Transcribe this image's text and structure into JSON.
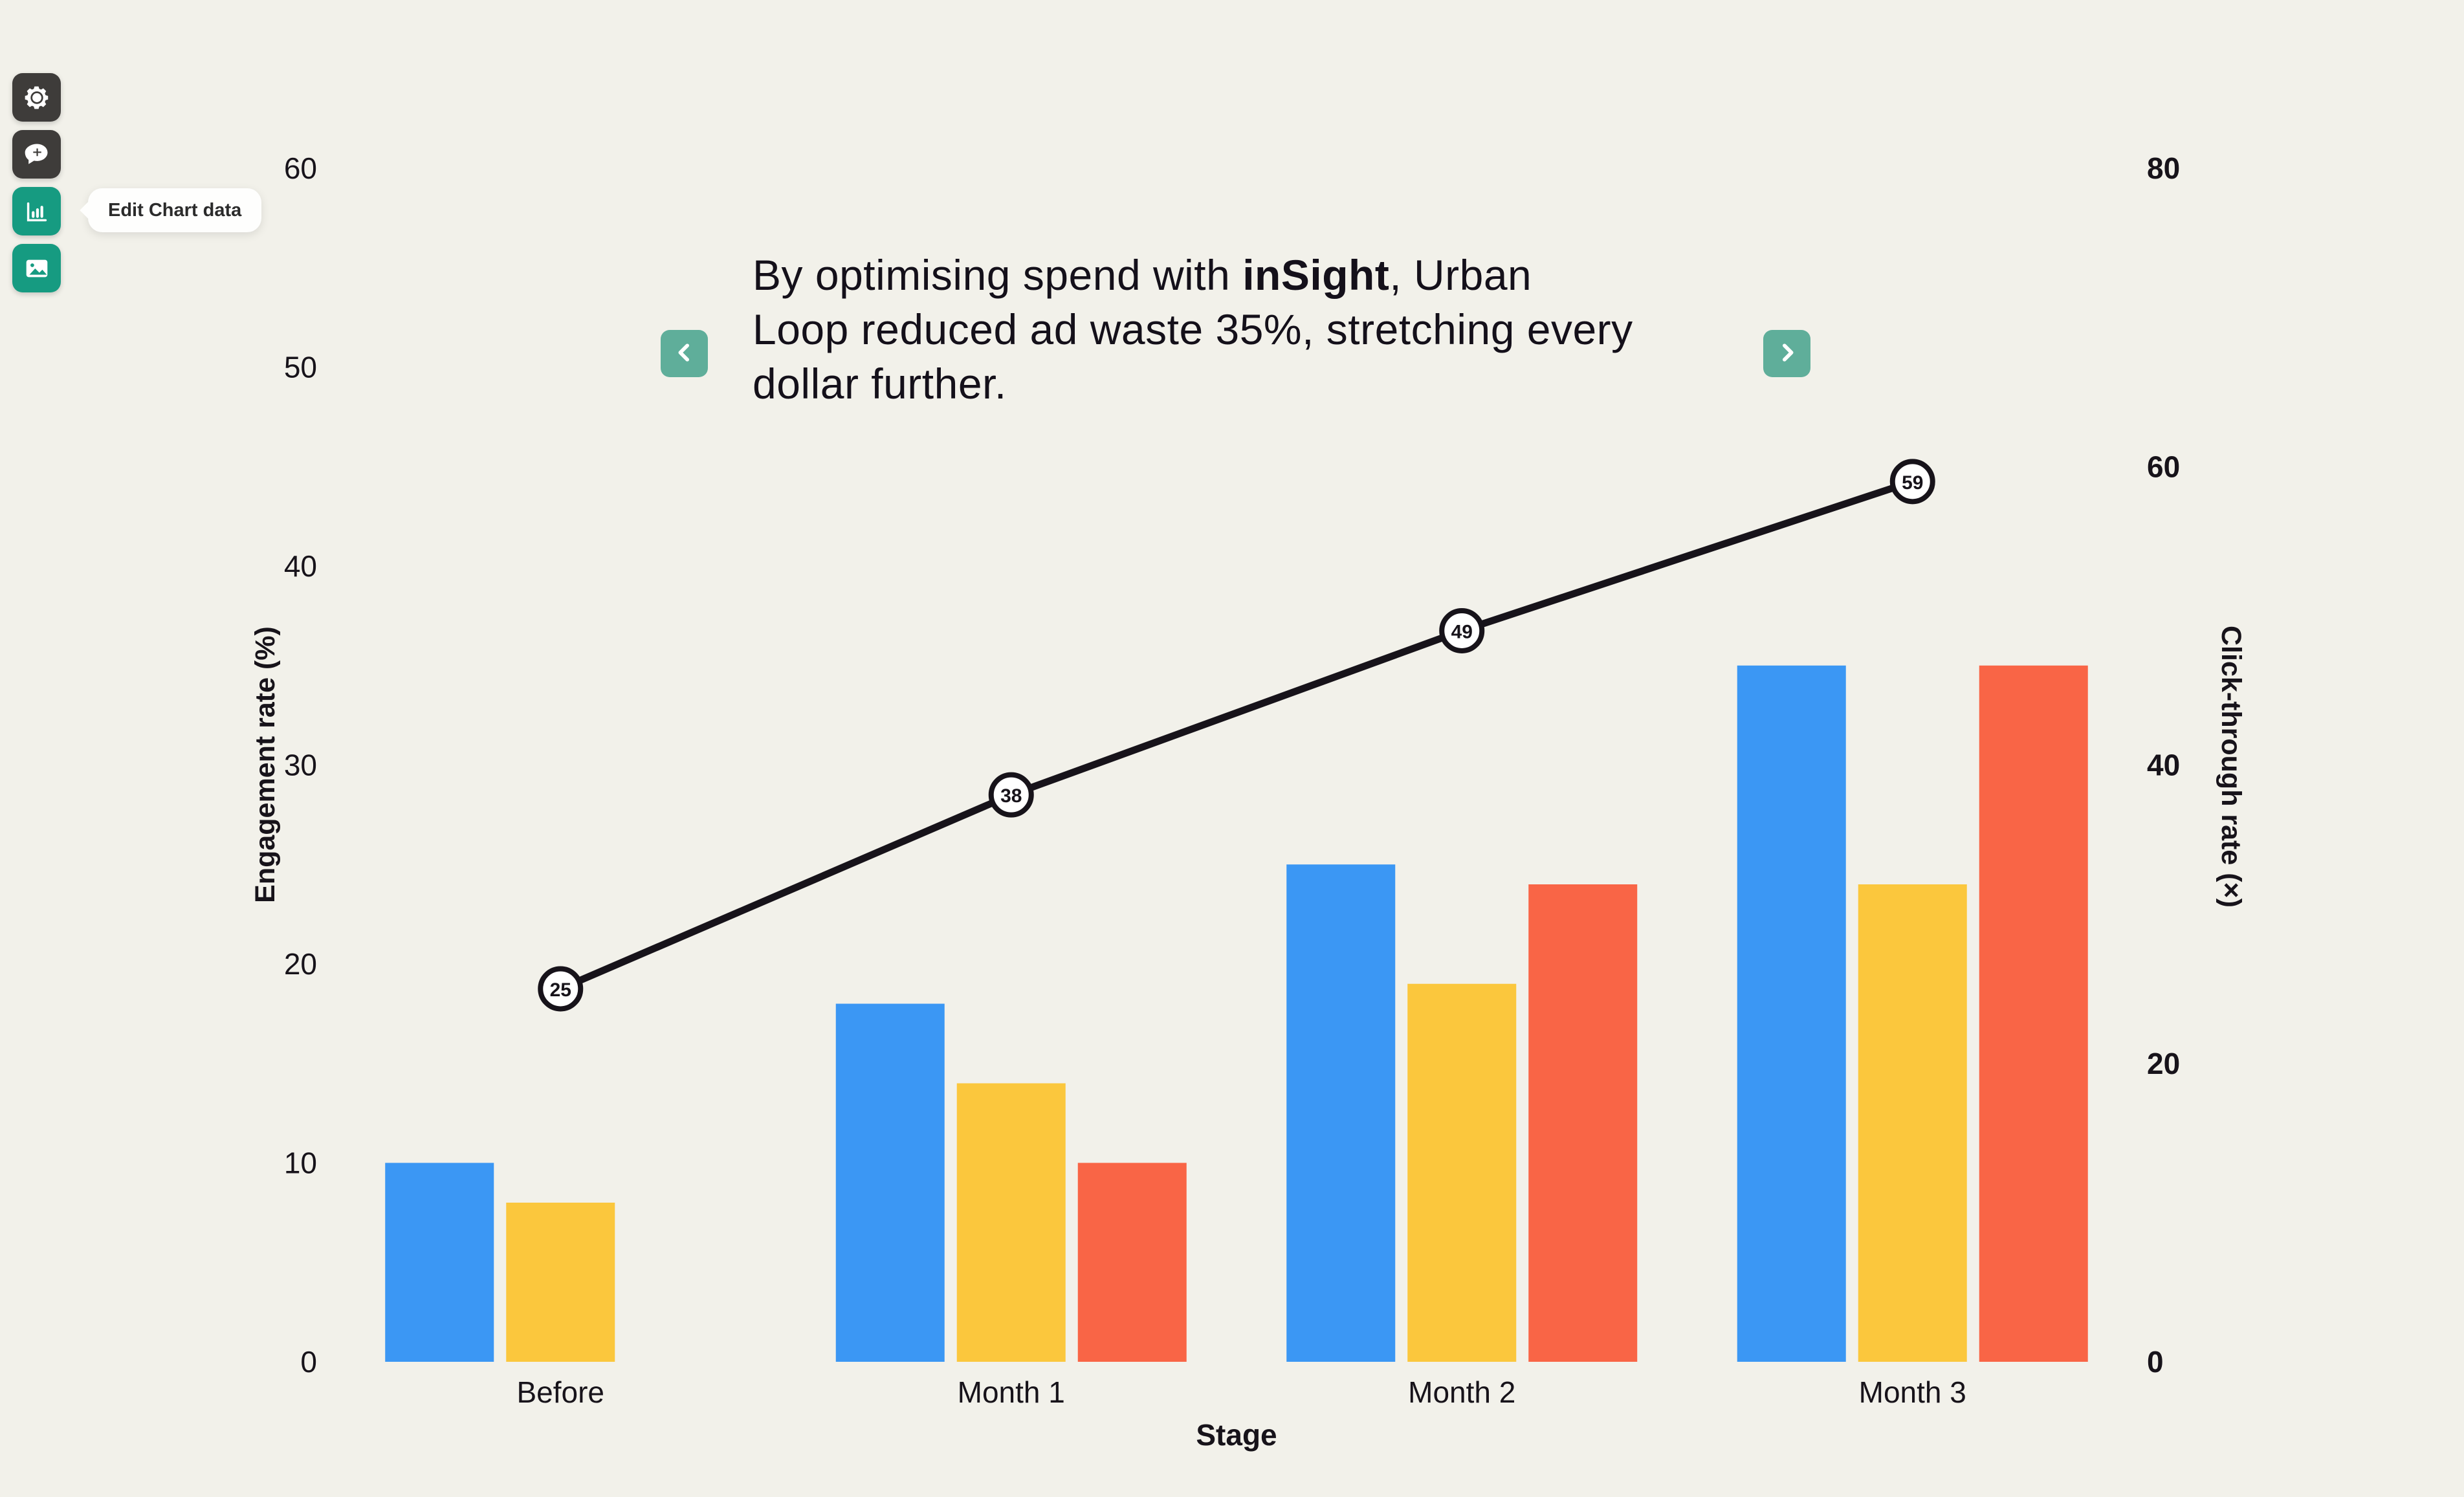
{
  "toolbar": {
    "tooltip": "Edit Chart data",
    "buttons": [
      {
        "id": "settings",
        "icon": "gear-icon",
        "style": "dark"
      },
      {
        "id": "add-comment",
        "icon": "comment-plus-icon",
        "style": "dark"
      },
      {
        "id": "edit-chart-data",
        "icon": "bar-chart-icon",
        "style": "teal"
      },
      {
        "id": "edit-image",
        "icon": "image-icon",
        "style": "teal"
      }
    ]
  },
  "nav": {
    "prev_icon": "chevron-left-icon",
    "next_icon": "chevron-right-icon"
  },
  "title": {
    "line1_pre": "By optimising spend with ",
    "line1_brand": "inSight",
    "line1_post": ", Urban",
    "line2": "Loop reduced ad waste 35%, stretching every",
    "line3": "dollar further."
  },
  "colors": {
    "background": "#F2F1EA",
    "toolbar_dark": "#3E3C3A",
    "toolbar_teal": "#169B81",
    "nav_teal": "#5FAE9A",
    "bar_blue": "#3B97F4",
    "bar_yellow": "#FBC73D",
    "bar_red": "#F96546",
    "line_black": "#17131A",
    "text": "#17131A"
  },
  "chart_data": {
    "type": "combo-bar-line",
    "categories": [
      "Before",
      "Month 1",
      "Month 2",
      "Month 3"
    ],
    "series": [
      {
        "name": "blue-bars",
        "type": "bar",
        "axis": "left",
        "color": "#3B97F4",
        "values": [
          10,
          18,
          25,
          35
        ]
      },
      {
        "name": "yellow-bars",
        "type": "bar",
        "axis": "left",
        "color": "#FBC73D",
        "values": [
          8,
          14,
          19,
          24
        ]
      },
      {
        "name": "red-bars",
        "type": "bar",
        "axis": "left",
        "color": "#F96546",
        "values": [
          0,
          10,
          24,
          35
        ]
      },
      {
        "name": "trend-line",
        "type": "line",
        "axis": "right",
        "color": "#17131A",
        "values": [
          25,
          38,
          49,
          59
        ],
        "point_labels": true
      }
    ],
    "xlabel": "Stage",
    "y_left": {
      "label": "Engagement rate (%)",
      "min": 0,
      "max": 60,
      "ticks": [
        0,
        10,
        20,
        30,
        40,
        50,
        60
      ]
    },
    "y_right": {
      "label": "Click-through rate (×)",
      "min": 0,
      "max": 80,
      "ticks": [
        0,
        20,
        40,
        60,
        80
      ]
    },
    "grid": false,
    "legend": false
  }
}
